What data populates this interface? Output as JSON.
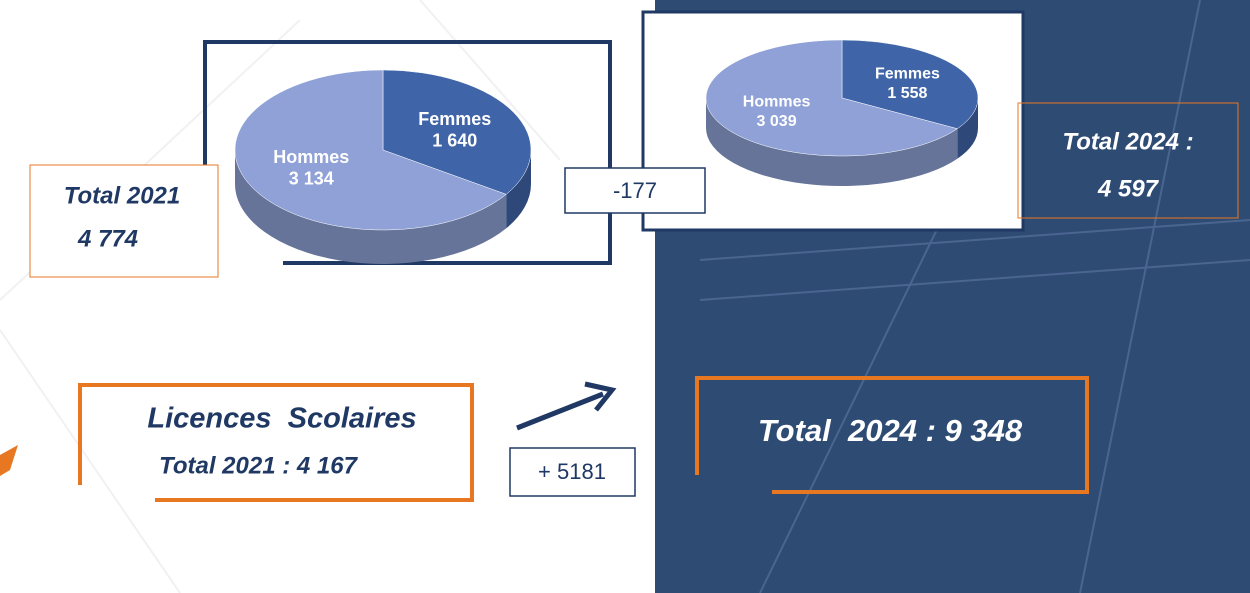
{
  "chart_data": [
    {
      "type": "pie",
      "categories": [
        "Hommes",
        "Femmes"
      ],
      "values": [
        3134,
        1640
      ],
      "value_labels": [
        "3 134",
        "1 640"
      ],
      "colors": [
        "#8fa1d6",
        "#3f64a8"
      ]
    },
    {
      "type": "pie",
      "categories": [
        "Hommes",
        "Femmes"
      ],
      "values": [
        3039,
        1558
      ],
      "value_labels": [
        "3 039",
        "1 558"
      ],
      "colors": [
        "#8fa1d6",
        "#3f64a8"
      ]
    }
  ],
  "totals": {
    "total_2021": {
      "label": "Total 2021",
      "value": "4 774"
    },
    "total_2024": {
      "label": "Total 2024 :",
      "value": "4 597"
    },
    "difference": "-177"
  },
  "scolaires": {
    "title": "Licences  Scolaires",
    "total_2021": "Total 2021 : 4 167",
    "difference": "+ 5181",
    "total_2024": "Total  2024 : 9 348"
  }
}
